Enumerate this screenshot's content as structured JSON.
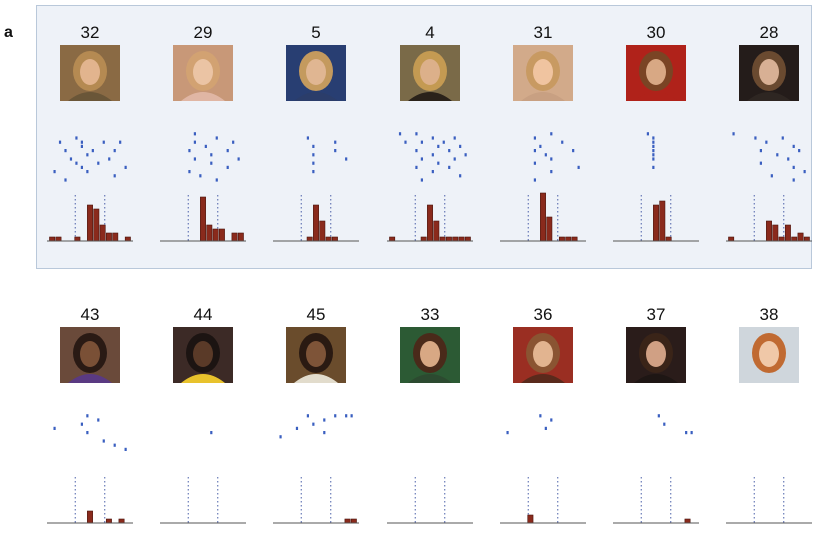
{
  "panel_label": "a",
  "rows": [
    {
      "highlighted": true,
      "cells": [
        {
          "label": "32",
          "photo": {
            "bg": "#8a6a44",
            "hair": "#b58a52",
            "skin": "#e2b48e",
            "shirt": "#6a5638"
          },
          "raster": [
            [
              2,
              5
            ],
            [
              3,
              2
            ],
            [
              3,
              6
            ],
            [
              3,
              10
            ],
            [
              3,
              13
            ],
            [
              4,
              6
            ],
            [
              5,
              3
            ],
            [
              5,
              8
            ],
            [
              5,
              12
            ],
            [
              6,
              7
            ],
            [
              7,
              4
            ],
            [
              7,
              11
            ],
            [
              8,
              5
            ],
            [
              8,
              9
            ],
            [
              9,
              6
            ],
            [
              9,
              14
            ],
            [
              10,
              1
            ],
            [
              10,
              7
            ],
            [
              11,
              12
            ],
            [
              12,
              3
            ]
          ],
          "hist": [
            1,
            1,
            0,
            0,
            1,
            0,
            9,
            8,
            4,
            2,
            2,
            0,
            1
          ]
        },
        {
          "label": "29",
          "photo": {
            "bg": "#c89878",
            "hair": "#d2a272",
            "skin": "#ebc4a4",
            "shirt": "#e0b6a4"
          },
          "raster": [
            [
              1,
              6
            ],
            [
              2,
              10
            ],
            [
              3,
              6
            ],
            [
              3,
              13
            ],
            [
              4,
              8
            ],
            [
              5,
              5
            ],
            [
              5,
              12
            ],
            [
              6,
              9
            ],
            [
              7,
              6
            ],
            [
              7,
              14
            ],
            [
              8,
              9
            ],
            [
              9,
              12
            ],
            [
              10,
              5
            ],
            [
              11,
              7
            ],
            [
              12,
              10
            ]
          ],
          "hist": [
            0,
            0,
            0,
            0,
            0,
            0,
            11,
            4,
            3,
            3,
            0,
            2,
            2
          ]
        },
        {
          "label": "5",
          "photo": {
            "bg": "#283e72",
            "hair": "#c49a5e",
            "skin": "#e0b692",
            "shirt": "#2b3d6a"
          },
          "raster": [
            [
              2,
              6
            ],
            [
              3,
              11
            ],
            [
              4,
              7
            ],
            [
              5,
              11
            ],
            [
              6,
              7
            ],
            [
              7,
              13
            ],
            [
              8,
              7
            ],
            [
              10,
              7
            ]
          ],
          "hist": [
            0,
            0,
            0,
            0,
            0,
            1,
            9,
            5,
            1,
            1,
            0,
            0,
            0
          ]
        },
        {
          "label": "4",
          "photo": {
            "bg": "#7a6a48",
            "hair": "#c49a52",
            "skin": "#dcb08a",
            "shirt": "#2a221a"
          },
          "raster": [
            [
              1,
              2
            ],
            [
              1,
              5
            ],
            [
              2,
              8
            ],
            [
              2,
              12
            ],
            [
              3,
              3
            ],
            [
              3,
              6
            ],
            [
              3,
              10
            ],
            [
              4,
              9
            ],
            [
              4,
              13
            ],
            [
              5,
              5
            ],
            [
              5,
              11
            ],
            [
              6,
              8
            ],
            [
              6,
              14
            ],
            [
              7,
              6
            ],
            [
              7,
              12
            ],
            [
              8,
              9
            ],
            [
              9,
              5
            ],
            [
              9,
              11
            ],
            [
              10,
              8
            ],
            [
              11,
              13
            ],
            [
              12,
              6
            ]
          ],
          "hist": [
            1,
            0,
            0,
            0,
            0,
            1,
            9,
            5,
            1,
            1,
            1,
            1,
            1
          ]
        },
        {
          "label": "31",
          "photo": {
            "bg": "#d2aa8a",
            "hair": "#c89a62",
            "skin": "#f0c4a0",
            "shirt": "#c8a082"
          },
          "raster": [
            [
              1,
              9
            ],
            [
              2,
              6
            ],
            [
              3,
              11
            ],
            [
              4,
              7
            ],
            [
              5,
              6
            ],
            [
              5,
              13
            ],
            [
              6,
              8
            ],
            [
              7,
              9
            ],
            [
              8,
              6
            ],
            [
              9,
              14
            ],
            [
              10,
              9
            ],
            [
              12,
              6
            ]
          ],
          "hist": [
            0,
            0,
            0,
            0,
            0,
            0,
            12,
            6,
            0,
            1,
            1,
            1,
            0
          ]
        },
        {
          "label": "30",
          "photo": {
            "bg": "#b0221a",
            "hair": "#7a4424",
            "skin": "#d8a884",
            "shirt": "#b0221a"
          },
          "raster": [
            [
              1,
              6
            ],
            [
              2,
              7
            ],
            [
              3,
              7
            ],
            [
              4,
              7
            ],
            [
              5,
              7
            ],
            [
              6,
              7
            ],
            [
              7,
              7
            ],
            [
              9,
              7
            ]
          ],
          "hist": [
            0,
            0,
            0,
            0,
            0,
            0,
            9,
            10,
            1,
            0,
            0,
            0,
            0
          ]
        },
        {
          "label": "28",
          "photo": {
            "bg": "#241c1a",
            "hair": "#6a4a30",
            "skin": "#d8b094",
            "shirt": "#2e2622"
          },
          "raster": [
            [
              1,
              1
            ],
            [
              2,
              5
            ],
            [
              2,
              10
            ],
            [
              3,
              7
            ],
            [
              4,
              12
            ],
            [
              5,
              6
            ],
            [
              5,
              13
            ],
            [
              6,
              9
            ],
            [
              7,
              11
            ],
            [
              8,
              6
            ],
            [
              9,
              12
            ],
            [
              10,
              14
            ],
            [
              11,
              8
            ],
            [
              12,
              12
            ]
          ],
          "hist": [
            1,
            0,
            0,
            0,
            0,
            0,
            5,
            4,
            1,
            4,
            1,
            2,
            1
          ]
        }
      ]
    },
    {
      "highlighted": false,
      "cells": [
        {
          "label": "43",
          "photo": {
            "bg": "#6a4a3a",
            "hair": "#2a1a14",
            "skin": "#7a5036",
            "shirt": "#5a3a82"
          },
          "raster": [
            [
              1,
              7
            ],
            [
              2,
              9
            ],
            [
              3,
              6
            ],
            [
              4,
              1
            ],
            [
              5,
              7
            ],
            [
              7,
              10
            ],
            [
              8,
              12
            ],
            [
              9,
              14
            ]
          ],
          "hist": [
            0,
            0,
            0,
            0,
            0,
            0,
            3,
            0,
            0,
            1,
            0,
            1,
            0
          ]
        },
        {
          "label": "44",
          "photo": {
            "bg": "#3c2a26",
            "hair": "#1c1412",
            "skin": "#5a3a28",
            "shirt": "#e8c22c"
          },
          "raster": [
            [
              5,
              9
            ]
          ],
          "hist": [
            0,
            0,
            0,
            0,
            0,
            0,
            0,
            0,
            0,
            0,
            0,
            0,
            0
          ]
        },
        {
          "label": "45",
          "photo": {
            "bg": "#6a4c2c",
            "hair": "#2a1a12",
            "skin": "#7e5438",
            "shirt": "#e2dccc"
          },
          "raster": [
            [
              1,
              6
            ],
            [
              1,
              11
            ],
            [
              1,
              13
            ],
            [
              1,
              14
            ],
            [
              2,
              9
            ],
            [
              3,
              7
            ],
            [
              4,
              4
            ],
            [
              5,
              9
            ],
            [
              6,
              1
            ]
          ],
          "hist": [
            0,
            0,
            0,
            0,
            0,
            0,
            0,
            0,
            0,
            0,
            0,
            1,
            1
          ]
        },
        {
          "label": "33",
          "photo": {
            "bg": "#2c5a34",
            "hair": "#4a2a1a",
            "skin": "#d8a884",
            "shirt": "#2c4a30"
          },
          "raster": [],
          "hist": [
            0,
            0,
            0,
            0,
            0,
            0,
            0,
            0,
            0,
            0,
            0,
            0,
            0
          ]
        },
        {
          "label": "36",
          "photo": {
            "bg": "#9a2e22",
            "hair": "#8a5432",
            "skin": "#e2b490",
            "shirt": "#5a2a1c"
          },
          "raster": [
            [
              1,
              7
            ],
            [
              2,
              9
            ],
            [
              4,
              8
            ],
            [
              5,
              1
            ]
          ],
          "hist": [
            0,
            0,
            0,
            0,
            2,
            0,
            0,
            0,
            0,
            0,
            0,
            0,
            0
          ]
        },
        {
          "label": "37",
          "photo": {
            "bg": "#2a1c1a",
            "hair": "#3a2418",
            "skin": "#d0a084",
            "shirt": "#1e1614"
          },
          "raster": [
            [
              1,
              8
            ],
            [
              3,
              9
            ],
            [
              5,
              13
            ],
            [
              5,
              14
            ]
          ],
          "hist": [
            0,
            0,
            0,
            0,
            0,
            0,
            0,
            0,
            0,
            0,
            0,
            1,
            0
          ]
        },
        {
          "label": "38",
          "photo": {
            "bg": "#cfd6dc",
            "hair": "#c06a32",
            "skin": "#f0c8a8",
            "shirt": "#cfd6dc"
          },
          "raster": [],
          "hist": [
            0,
            0,
            0,
            0,
            0,
            0,
            0,
            0,
            0,
            0,
            0,
            0,
            0
          ]
        }
      ]
    }
  ]
}
